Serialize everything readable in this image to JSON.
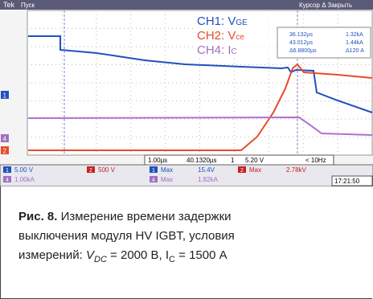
{
  "scope": {
    "top_left": "Tek",
    "top_mode": "Пуск",
    "top_right": "Курсор Δ Закрыть",
    "legend": [
      {
        "label": "CH1: V",
        "sub": "GE"
      },
      {
        "label": "CH2: V",
        "sub": "ce"
      },
      {
        "label": "CH4: I",
        "sub": "C"
      }
    ],
    "cursors": [
      [
        "36.132µs",
        "1.32kA"
      ],
      [
        "43.012µs",
        "1.44kA"
      ],
      [
        "Δ6.8800µs",
        "Δ120 A"
      ]
    ],
    "markers": [
      "1",
      "4",
      "2"
    ],
    "timebase": "1.00µs",
    "position": "40.1320µs",
    "trig_ch": "1",
    "trig_level": "5.20 V",
    "freq": "< 10Hz",
    "scales": [
      [
        "1",
        "5.00 V"
      ],
      [
        "2",
        "500 V"
      ],
      [
        "4",
        "1.00kA"
      ]
    ],
    "measures": [
      [
        "1",
        "Max",
        "15.4V"
      ],
      [
        "2",
        "Max",
        "2.78kV"
      ],
      [
        "4",
        "Max",
        "1.82kA"
      ]
    ],
    "clock": "17:21:50"
  },
  "caption": {
    "fig": "Рис. 8.",
    "line1": " Измерение времени задержки",
    "line2": "выключения модуля HV IGBT, условия",
    "line3": [
      "измерений: ",
      "V",
      "DC",
      " = 2000 В, I",
      "C",
      " = 1500 А"
    ]
  }
}
